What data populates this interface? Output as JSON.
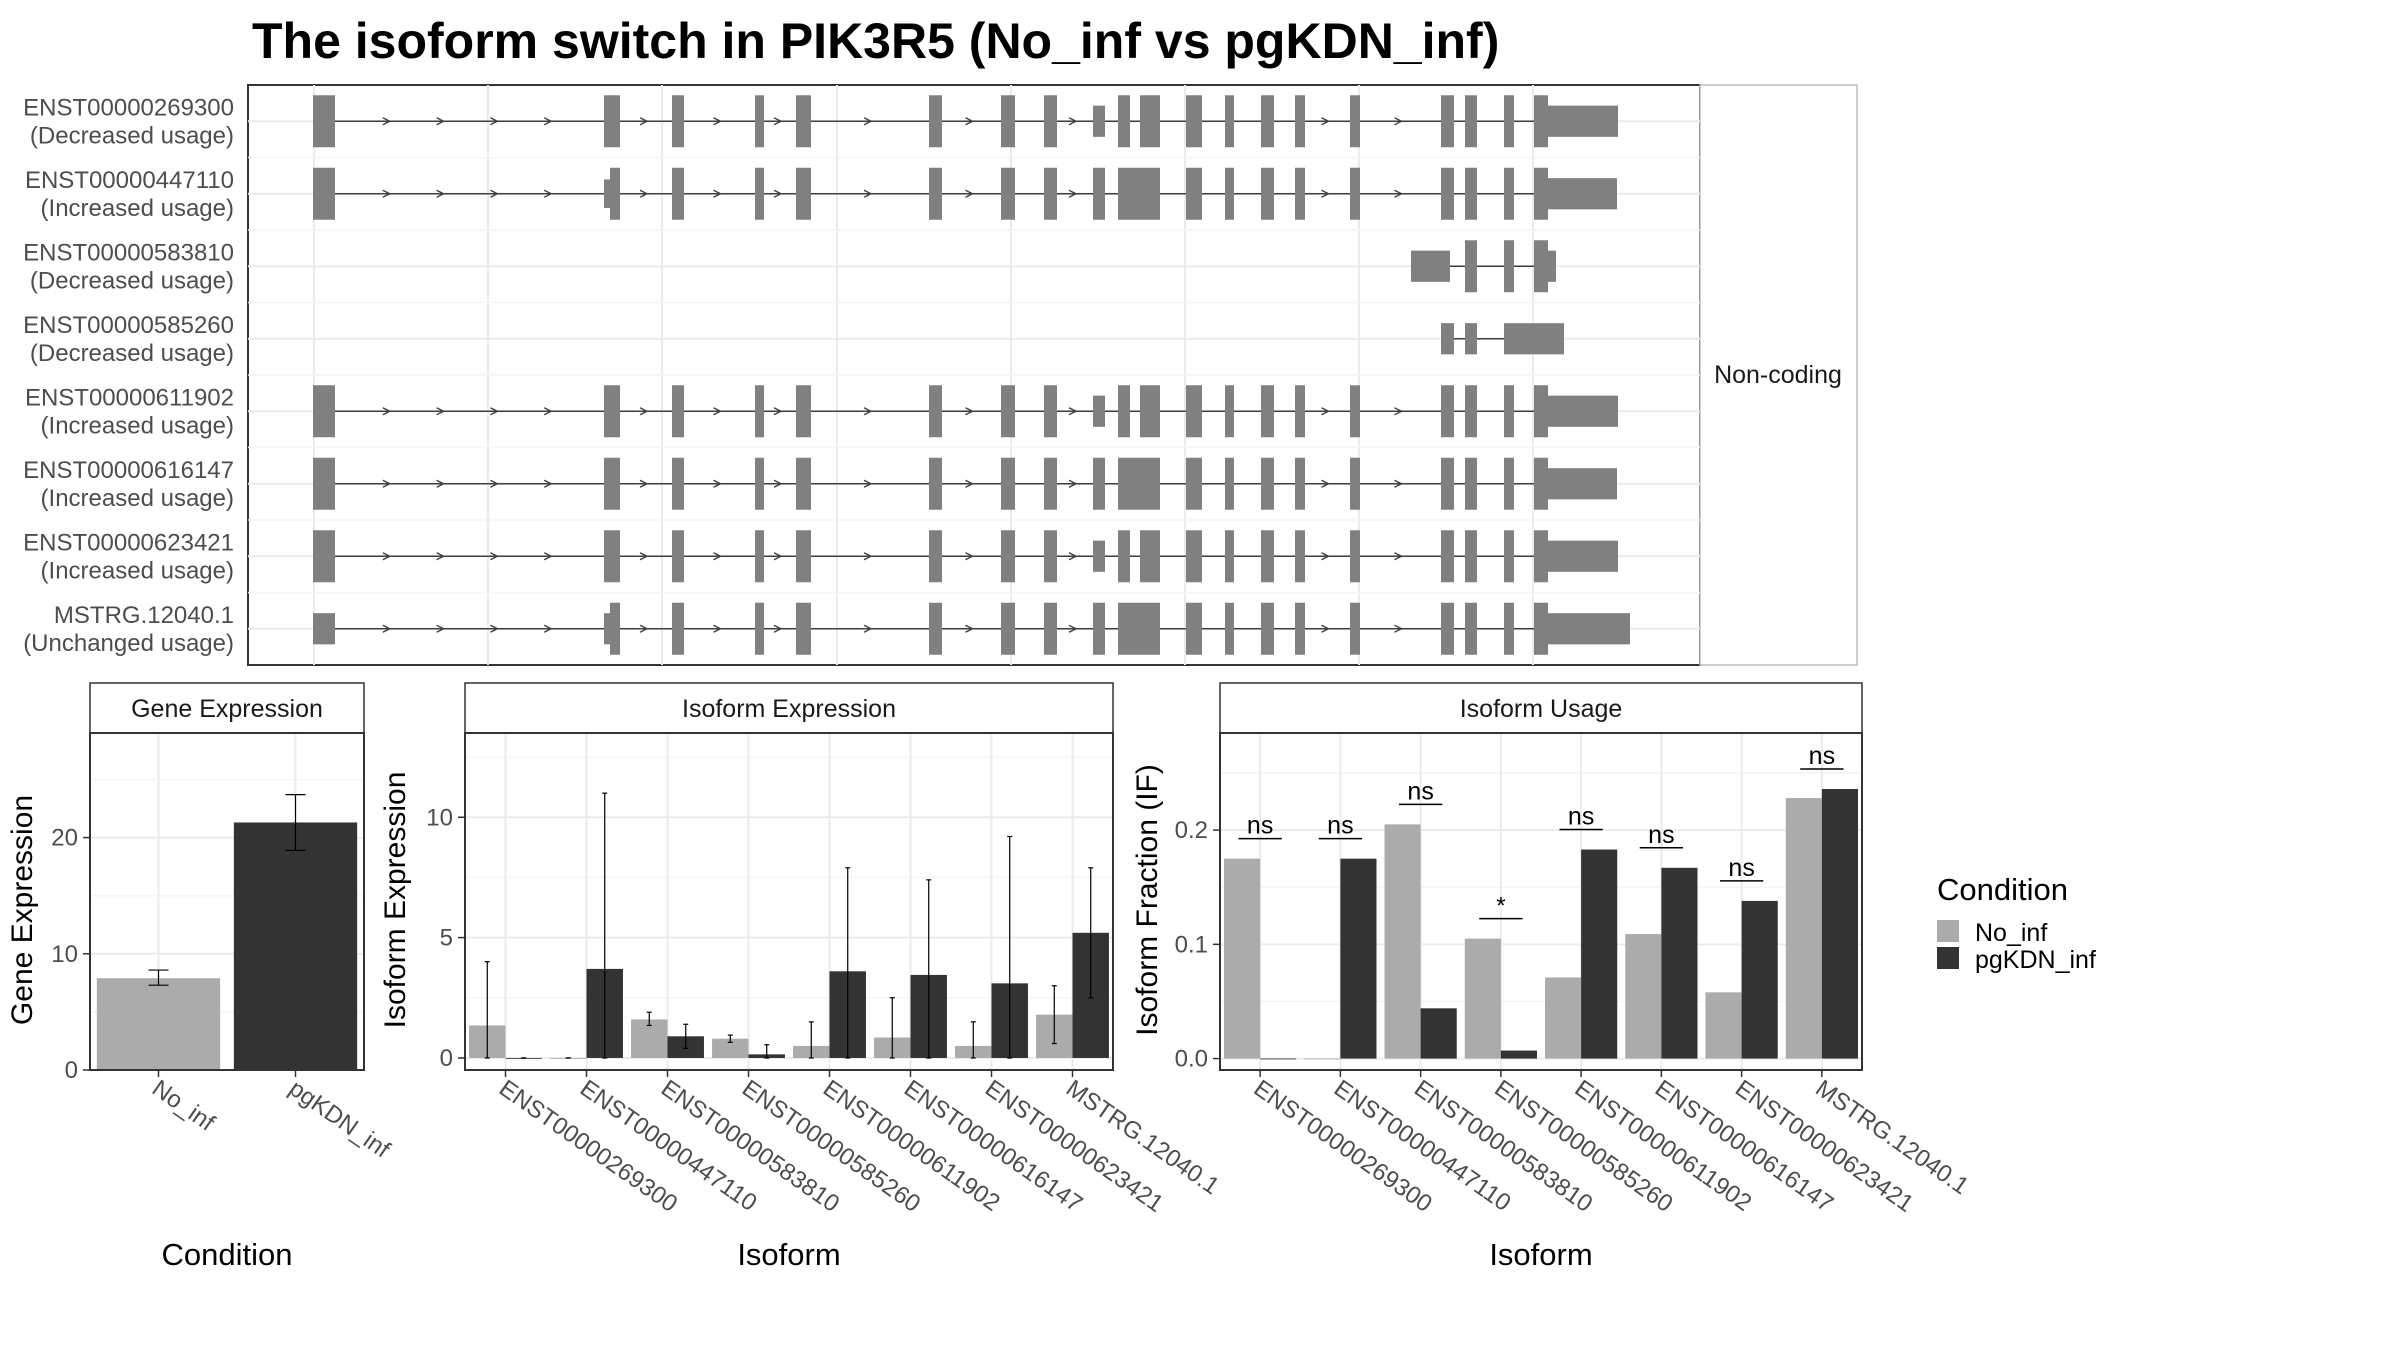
{
  "title": "The isoform switch in PIK3R5 (No_inf vs pgKDN_inf)",
  "colors": {
    "no_inf": "#ababab",
    "pgkdn_inf": "#333333",
    "exon": "#808080",
    "intron": "#404040",
    "grid": "#ebebeb",
    "panel_border": "#333333",
    "strip_fill": "#ffffff",
    "text": "#000000",
    "tick_text": "#4d4d4d"
  },
  "chart_data": [
    {
      "type": "gene_structure",
      "facet_label": "Non-coding",
      "tracks": [
        {
          "id": "ENST00000269300",
          "usage": "(Decreased usage)"
        },
        {
          "id": "ENST00000447110",
          "usage": "(Increased usage)"
        },
        {
          "id": "ENST00000583810",
          "usage": "(Decreased usage)"
        },
        {
          "id": "ENST00000585260",
          "usage": "(Decreased usage)"
        },
        {
          "id": "ENST00000611902",
          "usage": "(Increased usage)"
        },
        {
          "id": "ENST00000616147",
          "usage": "(Increased usage)"
        },
        {
          "id": "ENST00000623421",
          "usage": "(Increased usage)"
        },
        {
          "id": "MSTRG.12040.1",
          "usage": "(Unchanged usage)"
        }
      ]
    },
    {
      "type": "bar",
      "strip": "Gene Expression",
      "xlabel": "Condition",
      "ylabel": "Gene Expression",
      "categories": [
        "No_inf",
        "pgKDN_inf"
      ],
      "values": [
        7.9,
        21.3
      ],
      "err_low": [
        7.3,
        18.9
      ],
      "err_high": [
        8.6,
        23.7
      ],
      "ylim": [
        0,
        29
      ],
      "yticks": [
        0,
        10,
        20
      ]
    },
    {
      "type": "bar",
      "strip": "Isoform Expression",
      "xlabel": "Isoform",
      "ylabel": "Isoform Expression",
      "categories": [
        "ENST00000269300",
        "ENST00000447110",
        "ENST00000583810",
        "ENST00000585260",
        "ENST00000611902",
        "ENST00000616147",
        "ENST00000623421",
        "MSTRG.12040.1"
      ],
      "ylim": [
        -0.5,
        13.5
      ],
      "yticks": [
        0,
        5,
        10
      ],
      "series": [
        {
          "name": "No_inf",
          "values": [
            1.35,
            0.0,
            1.6,
            0.8,
            0.5,
            0.85,
            0.5,
            1.8
          ],
          "err_low": [
            0.0,
            0.0,
            1.35,
            0.65,
            0.0,
            0.0,
            0.0,
            0.6
          ],
          "err_high": [
            4.0,
            0.0,
            1.9,
            0.95,
            1.5,
            2.5,
            1.5,
            3.0
          ]
        },
        {
          "name": "pgKDN_inf",
          "values": [
            0.0,
            3.7,
            0.9,
            0.15,
            3.6,
            3.45,
            3.1,
            5.2
          ],
          "err_low": [
            0.0,
            0.0,
            0.4,
            0.0,
            0.0,
            0.0,
            0.0,
            2.5
          ],
          "err_high": [
            0.0,
            11.0,
            1.4,
            0.55,
            7.9,
            7.4,
            9.2,
            7.9
          ]
        }
      ]
    },
    {
      "type": "bar",
      "strip": "Isoform Usage",
      "xlabel": "Isoform",
      "ylabel": "Isoform Fraction (IF)",
      "categories": [
        "ENST00000269300",
        "ENST00000447110",
        "ENST00000583810",
        "ENST00000585260",
        "ENST00000611902",
        "ENST00000616147",
        "ENST00000623421",
        "MSTRG.12040.1"
      ],
      "ylim": [
        -0.01,
        0.285
      ],
      "yticks": [
        0.0,
        0.1,
        0.2
      ],
      "ytick_labels": [
        "0.0",
        "0.1",
        "0.2"
      ],
      "series": [
        {
          "name": "No_inf",
          "values": [
            0.175,
            0.0,
            0.205,
            0.105,
            0.071,
            0.109,
            0.058,
            0.228
          ]
        },
        {
          "name": "pgKDN_inf",
          "values": [
            0.0,
            0.175,
            0.044,
            0.007,
            0.183,
            0.167,
            0.138,
            0.236
          ]
        }
      ],
      "significance": [
        "ns",
        "ns",
        "ns",
        "*",
        "ns",
        "ns",
        "ns",
        "ns"
      ]
    }
  ],
  "legend": {
    "title": "Condition",
    "entries": [
      {
        "label": "No_inf",
        "color": "#ababab"
      },
      {
        "label": "pgKDN_inf",
        "color": "#333333"
      }
    ]
  }
}
